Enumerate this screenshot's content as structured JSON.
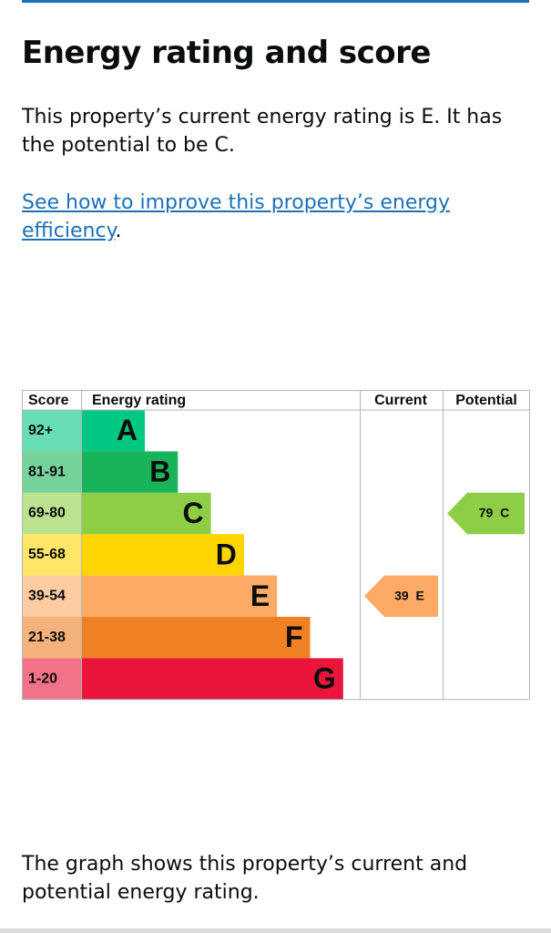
{
  "header": {
    "title": "Energy rating and score"
  },
  "intro": "This property’s current energy rating is E. It has the potential to be C.",
  "link": {
    "text": "See how to improve this property’s energy efficiency",
    "after": "."
  },
  "chart": {
    "columns": [
      "Score",
      "Energy rating",
      "Current",
      "Potential"
    ],
    "bands": [
      {
        "score": "92+",
        "rating": "A",
        "color": "#00c781"
      },
      {
        "score": "81-91",
        "rating": "B",
        "color": "#19b459"
      },
      {
        "score": "69-80",
        "rating": "C",
        "color": "#8dce46"
      },
      {
        "score": "55-68",
        "rating": "D",
        "color": "#ffd500"
      },
      {
        "score": "39-54",
        "rating": "E",
        "color": "#fcaa65"
      },
      {
        "score": "21-38",
        "rating": "F",
        "color": "#ef8023"
      },
      {
        "score": "1-20",
        "rating": "G",
        "color": "#e9153b"
      }
    ],
    "current": {
      "score": 39,
      "rating": "E"
    },
    "potential": {
      "score": 79,
      "rating": "C"
    }
  },
  "footer": "The graph shows this property’s current and potential energy rating."
}
